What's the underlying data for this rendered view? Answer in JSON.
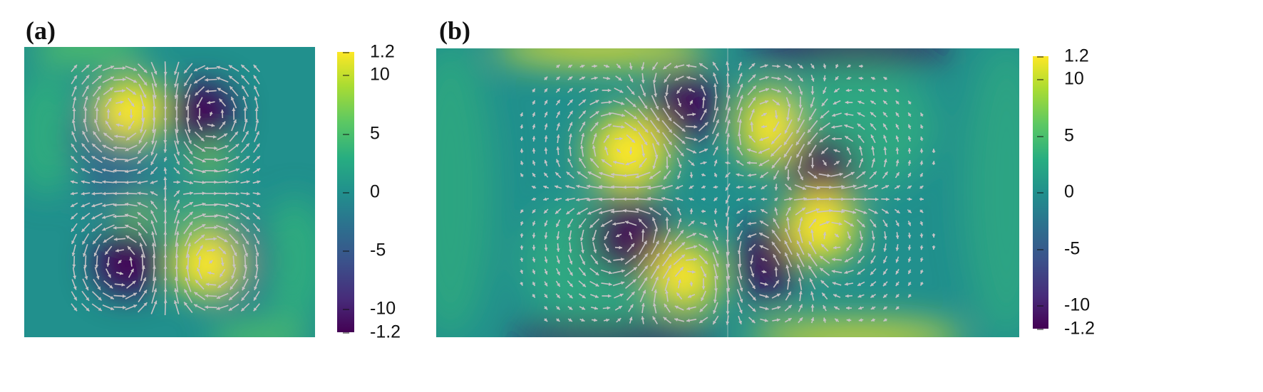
{
  "panels": [
    {
      "label": "(a)",
      "ticks": [
        "1.2",
        "10",
        "5",
        "0",
        "-5",
        "-10",
        "-1.2"
      ]
    },
    {
      "label": "(b)",
      "ticks": [
        "1.2",
        "10",
        "5",
        "0",
        "-5",
        "-10",
        "-1.2"
      ]
    }
  ],
  "colormap": {
    "name": "viridis",
    "low": "#440154",
    "mid": "#21908d",
    "high": "#fde725",
    "arrow": "#c9c3c6"
  }
}
